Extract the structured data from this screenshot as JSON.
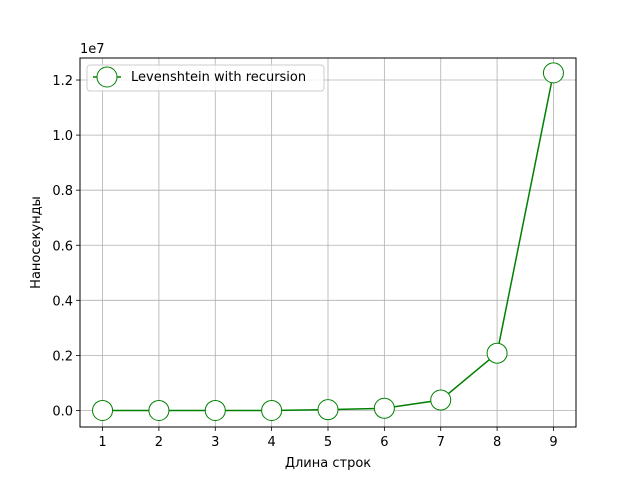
{
  "chart_data": {
    "type": "line",
    "title": "",
    "xlabel": "Длина строк",
    "ylabel": "Наносекунды",
    "offset_label": "1e7",
    "x": [
      1,
      2,
      3,
      4,
      5,
      6,
      7,
      8,
      9
    ],
    "xlim": [
      0.6,
      9.4
    ],
    "ylim": [
      -0.06,
      1.28
    ],
    "y_scale_factor": 10000000,
    "xticks": [
      1,
      2,
      3,
      4,
      5,
      6,
      7,
      8,
      9
    ],
    "xtick_labels": [
      "1",
      "2",
      "3",
      "4",
      "5",
      "6",
      "7",
      "8",
      "9"
    ],
    "yticks": [
      0.0,
      0.2,
      0.4,
      0.6,
      0.8,
      1.0,
      1.2
    ],
    "ytick_labels": [
      "0.0",
      "0.2",
      "0.4",
      "0.6",
      "0.8",
      "1.0",
      "1.2"
    ],
    "grid": true,
    "legend_position": "upper left",
    "series": [
      {
        "name": "Levenshtein with recursion",
        "color": "#008000",
        "marker": "circle",
        "marker_face": "#ffffff",
        "values": [
          0.0,
          0.0,
          0.0,
          0.0,
          0.003,
          0.008,
          0.038,
          0.208,
          1.226
        ]
      }
    ]
  }
}
